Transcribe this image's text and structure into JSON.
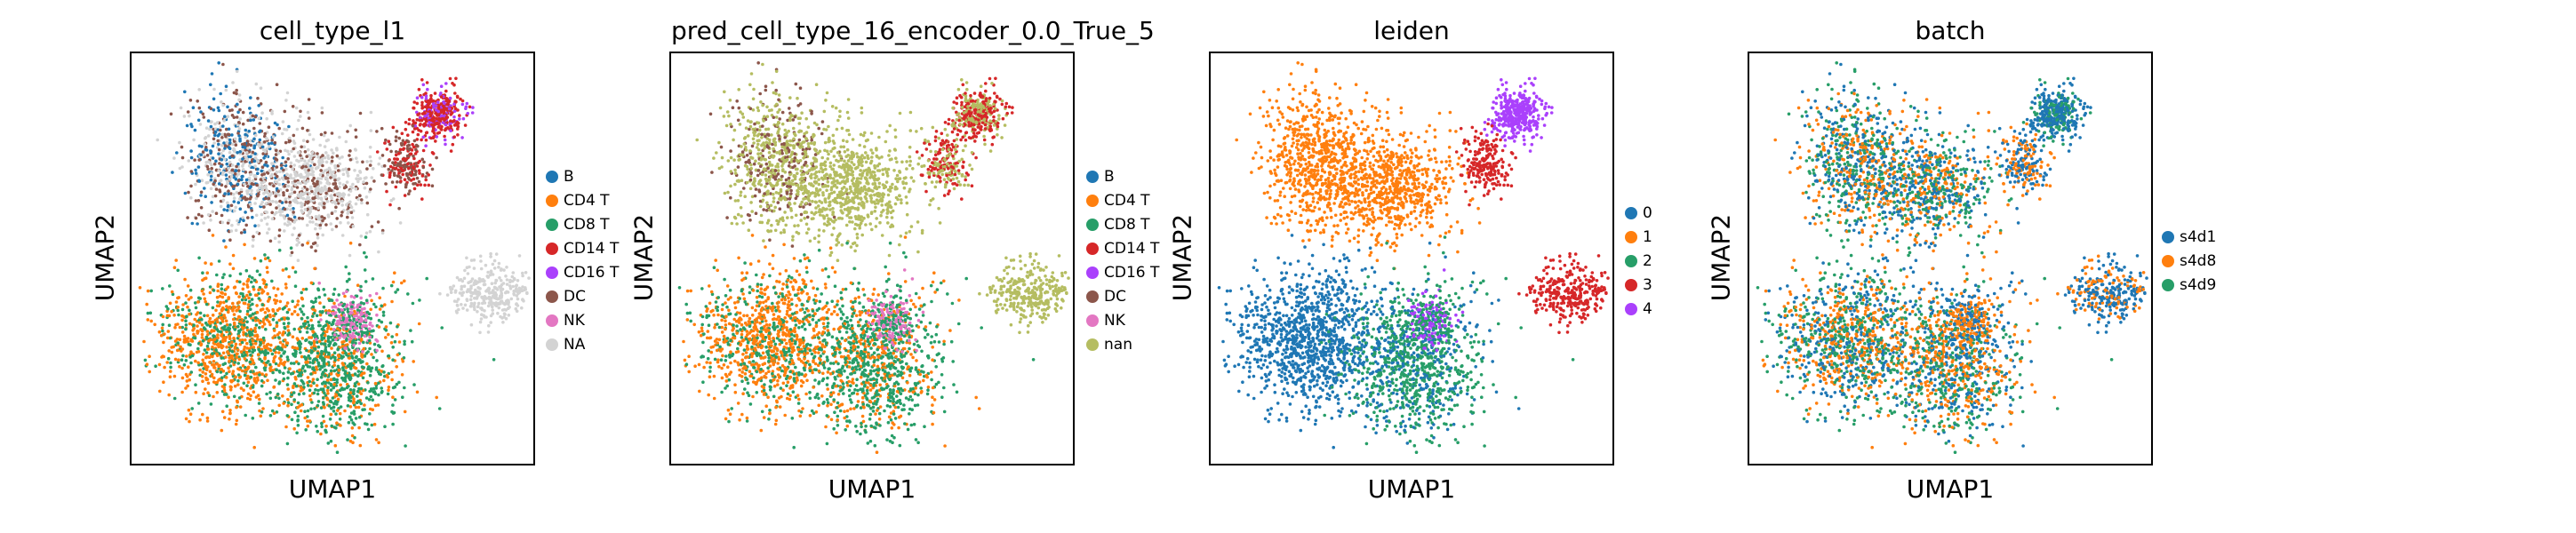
{
  "chart_data": [
    {
      "type": "scatter",
      "title": "cell_type_l1",
      "xlabel": "UMAP1",
      "ylabel": "UMAP2",
      "legend": [
        {
          "name": "B",
          "color": "#1f77b4"
        },
        {
          "name": "CD4 T",
          "color": "#ff7f0e"
        },
        {
          "name": "CD8 T",
          "color": "#279e68"
        },
        {
          "name": "CD14 T",
          "color": "#d62728"
        },
        {
          "name": "CD16 T",
          "color": "#aa40fc"
        },
        {
          "name": "DC",
          "color": "#8c564b"
        },
        {
          "name": "NK",
          "color": "#e377c2"
        },
        {
          "name": "NA",
          "color": "#d3d3d3"
        }
      ],
      "legend_placement": "right"
    },
    {
      "type": "scatter",
      "title": "pred_cell_type_16_encoder_0.0_True_5",
      "xlabel": "UMAP1",
      "ylabel": "UMAP2",
      "legend": [
        {
          "name": "B",
          "color": "#1f77b4"
        },
        {
          "name": "CD4 T",
          "color": "#ff7f0e"
        },
        {
          "name": "CD8 T",
          "color": "#279e68"
        },
        {
          "name": "CD14 T",
          "color": "#d62728"
        },
        {
          "name": "CD16 T",
          "color": "#aa40fc"
        },
        {
          "name": "DC",
          "color": "#8c564b"
        },
        {
          "name": "NK",
          "color": "#e377c2"
        },
        {
          "name": "nan",
          "color": "#b5bd61"
        }
      ],
      "legend_placement": "right"
    },
    {
      "type": "scatter",
      "title": "leiden",
      "xlabel": "UMAP1",
      "ylabel": "UMAP2",
      "legend": [
        {
          "name": "0",
          "color": "#1f77b4"
        },
        {
          "name": "1",
          "color": "#ff7f0e"
        },
        {
          "name": "2",
          "color": "#279e68"
        },
        {
          "name": "3",
          "color": "#d62728"
        },
        {
          "name": "4",
          "color": "#aa40fc"
        }
      ],
      "legend_placement": "right"
    },
    {
      "type": "scatter",
      "title": "batch",
      "xlabel": "UMAP1",
      "ylabel": "UMAP2",
      "legend": [
        {
          "name": "s4d1",
          "color": "#1f77b4"
        },
        {
          "name": "s4d8",
          "color": "#ff7f0e"
        },
        {
          "name": "s4d9",
          "color": "#279e68"
        }
      ],
      "legend_placement": "right"
    }
  ]
}
